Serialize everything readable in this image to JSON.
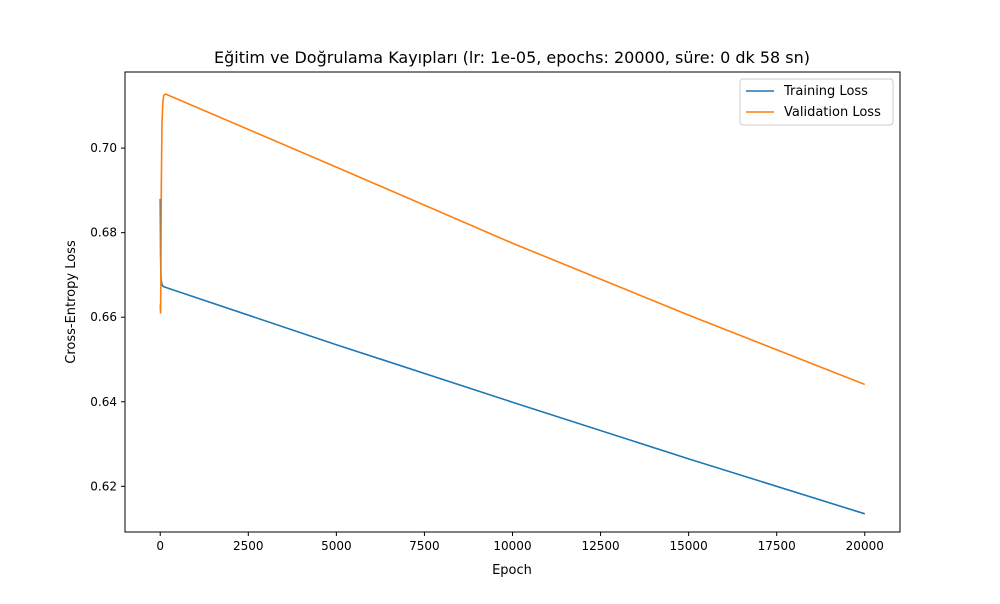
{
  "chart_data": {
    "type": "line",
    "title": "Eğitim ve Doğrulama Kayıpları (lr: 1e-05, epochs: 20000, süre: 0 dk 58 sn)",
    "xlabel": "Epoch",
    "ylabel": "Cross-Entropy Loss",
    "xlim": [
      -1000,
      21000
    ],
    "ylim": [
      0.6092,
      0.718
    ],
    "xticks": [
      0,
      2500,
      5000,
      7500,
      10000,
      12500,
      15000,
      17500,
      20000
    ],
    "xtick_labels": [
      "0",
      "2500",
      "5000",
      "7500",
      "10000",
      "12500",
      "15000",
      "17500",
      "20000"
    ],
    "yticks": [
      0.62,
      0.64,
      0.66,
      0.68,
      0.7
    ],
    "ytick_labels": [
      "0.62",
      "0.64",
      "0.66",
      "0.68",
      "0.70"
    ],
    "grid": false,
    "legend_position": "top-right",
    "series": [
      {
        "name": "Training Loss",
        "color": "#1f77b4",
        "x": [
          0,
          5,
          10,
          20,
          40,
          60,
          100,
          5000,
          10000,
          15000,
          20000
        ],
        "y": [
          0.688,
          0.683,
          0.675,
          0.6695,
          0.668,
          0.6675,
          0.6672,
          0.6535,
          0.6399,
          0.6265,
          0.6135
        ]
      },
      {
        "name": "Validation Loss",
        "color": "#ff7f0e",
        "x": [
          0,
          10,
          20,
          30,
          50,
          75,
          100,
          150,
          5000,
          10000,
          15000,
          20000
        ],
        "y": [
          0.663,
          0.661,
          0.67,
          0.69,
          0.706,
          0.711,
          0.7125,
          0.7128,
          0.6955,
          0.6775,
          0.6605,
          0.6441
        ]
      }
    ]
  }
}
